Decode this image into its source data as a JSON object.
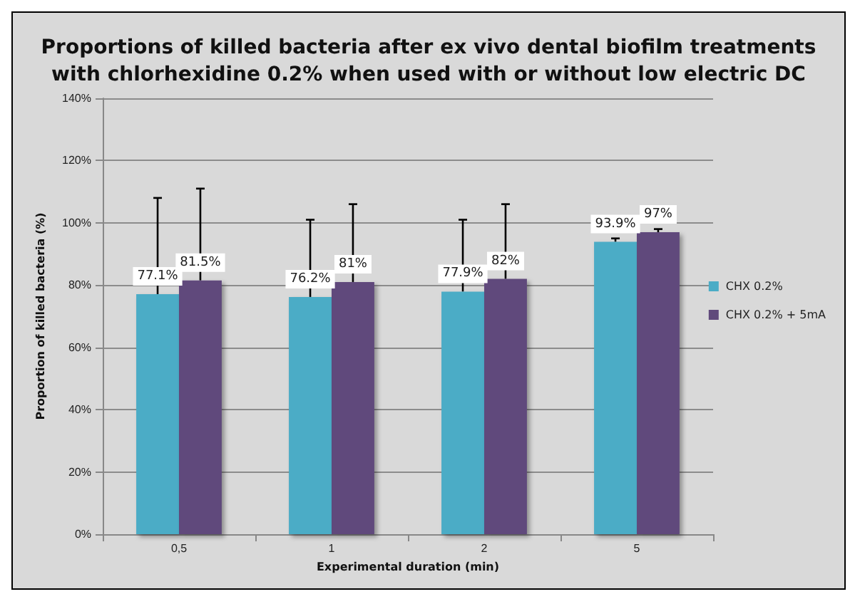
{
  "chart_data": {
    "type": "bar",
    "title": "Proportions of killed bacteria after ex vivo dental biofilm treatments\nwith chlorhexidine 0.2% when used with or without low electric DC",
    "xlabel": "Experimental duration (min)",
    "ylabel": "Proportion of killed bacteria (%)",
    "categories": [
      "0,5",
      "1",
      "2",
      "5"
    ],
    "series": [
      {
        "name": "CHX 0.2%",
        "color": "#4bacc6",
        "values": [
          77.1,
          76.2,
          77.9,
          93.9
        ],
        "value_labels": [
          "77.1%",
          "76.2%",
          "77.9%",
          "93.9%"
        ],
        "errors": [
          [
            77.1,
            108
          ],
          [
            76.2,
            101
          ],
          [
            77.9,
            101
          ],
          [
            93.9,
            95
          ]
        ]
      },
      {
        "name": "CHX 0.2% + 5mA",
        "color": "#604a7b",
        "values": [
          81.5,
          81,
          82,
          97
        ],
        "value_labels": [
          "81.5%",
          "81%",
          "82%",
          "97%"
        ],
        "errors": [
          [
            81.5,
            111
          ],
          [
            81,
            106
          ],
          [
            82,
            106
          ],
          [
            97,
            98
          ]
        ]
      }
    ],
    "ylim": [
      0,
      140
    ],
    "yticks": [
      {
        "value": 0,
        "label": "0%"
      },
      {
        "value": 20,
        "label": "20%"
      },
      {
        "value": 40,
        "label": "40%"
      },
      {
        "value": 60,
        "label": "60%"
      },
      {
        "value": 80,
        "label": "80%"
      },
      {
        "value": 100,
        "label": "100%"
      },
      {
        "value": 120,
        "label": "120%"
      },
      {
        "value": 140,
        "label": "140%"
      }
    ],
    "grid": "y",
    "legend": "right"
  }
}
